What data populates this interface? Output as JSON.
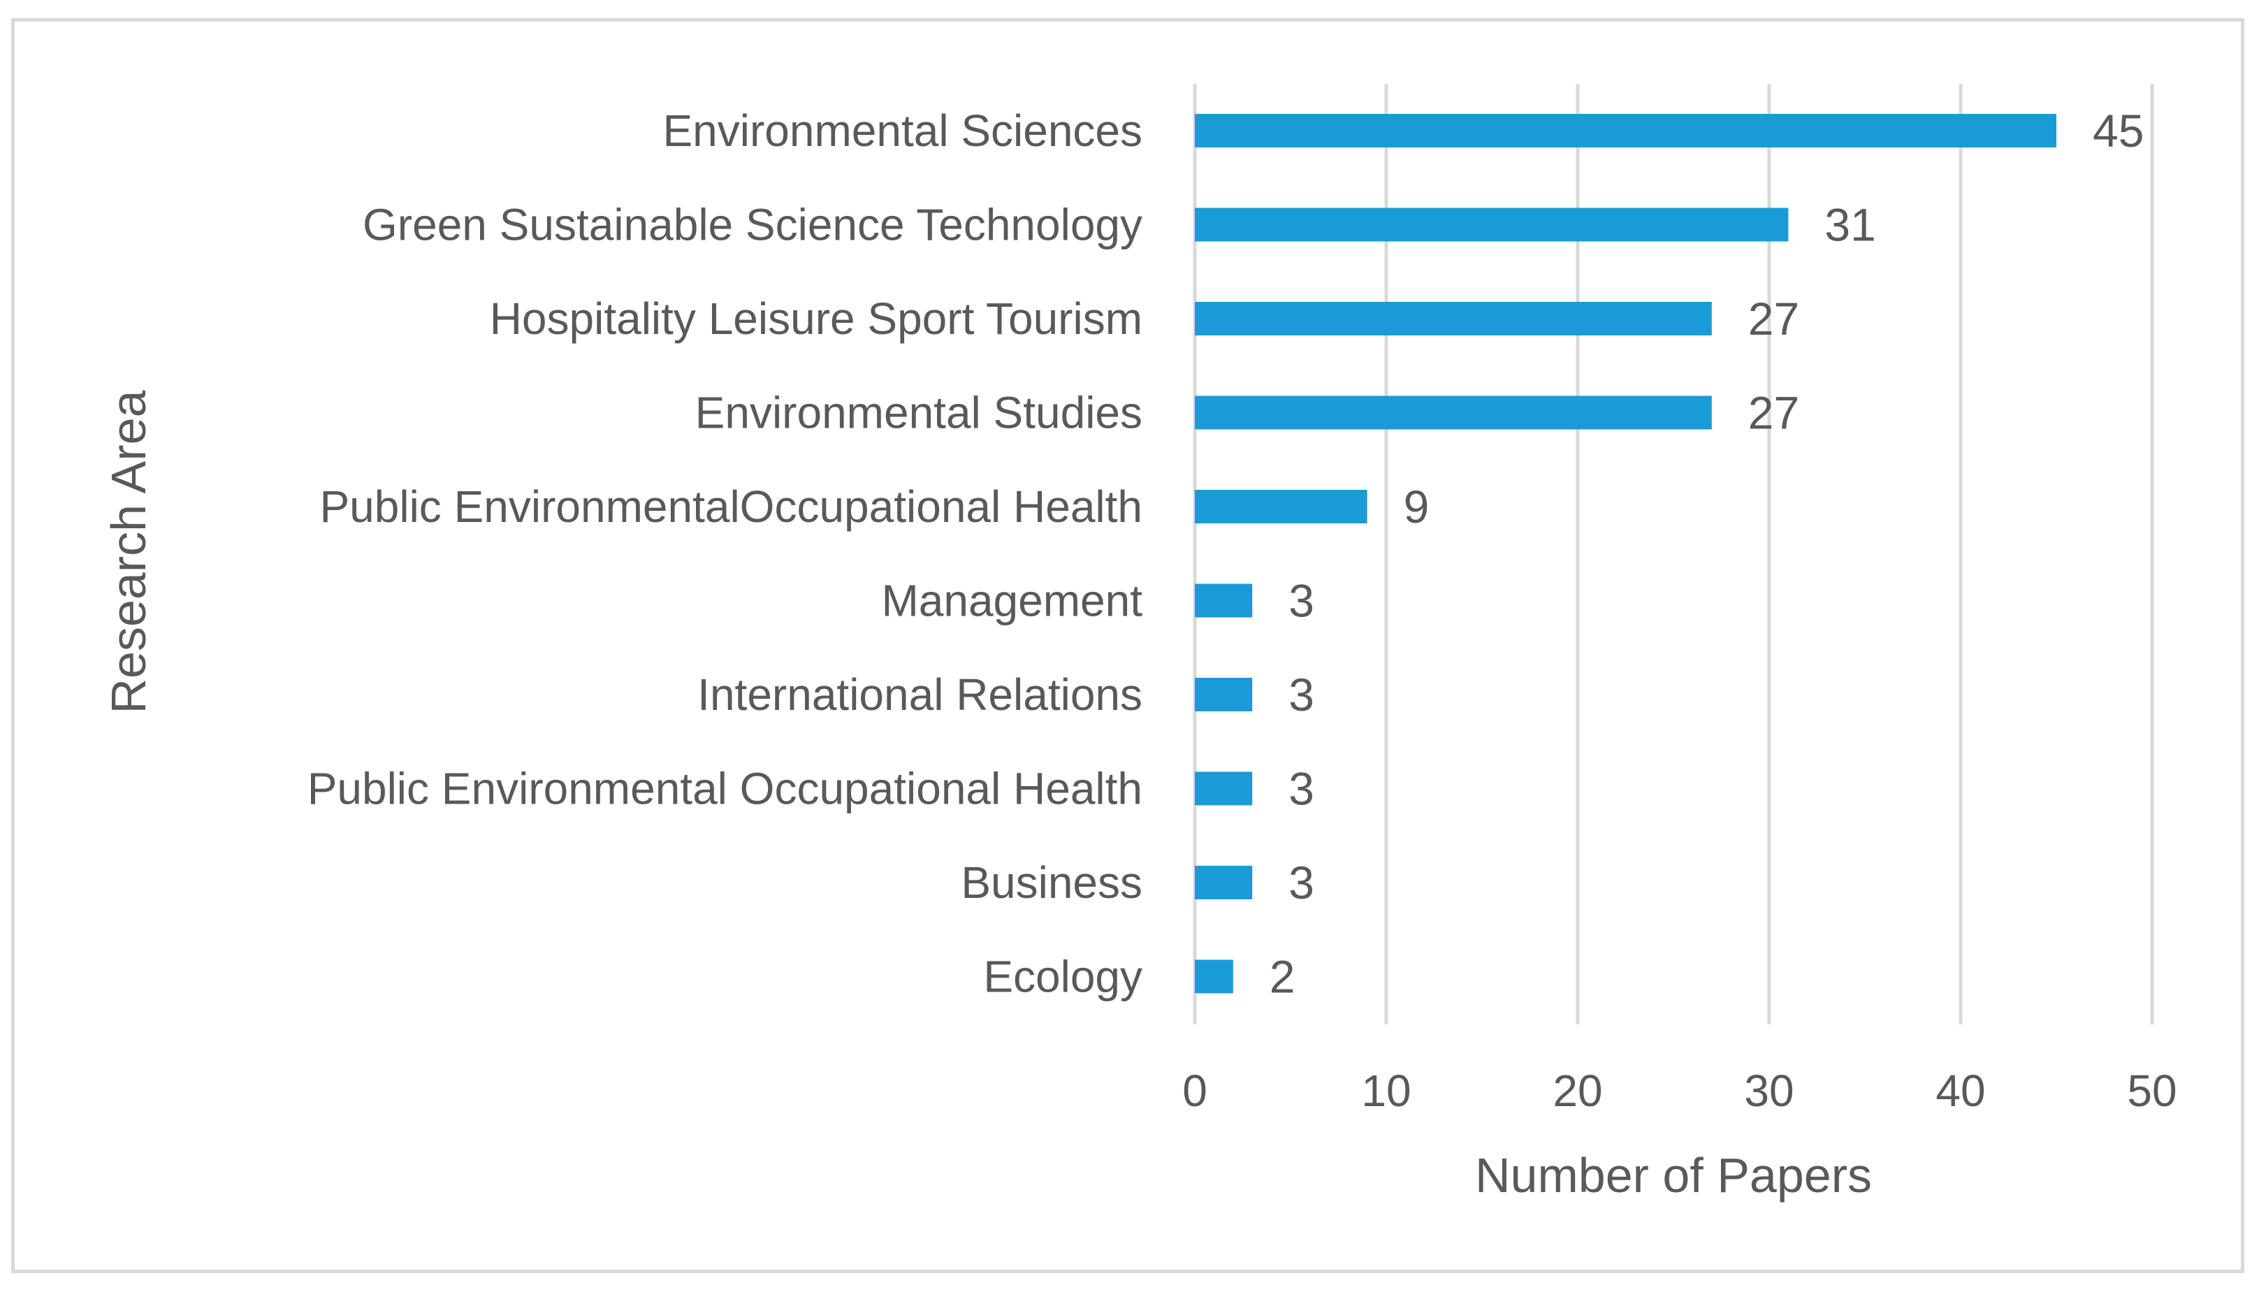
{
  "chart_data": {
    "type": "bar",
    "orientation": "horizontal",
    "title": "",
    "xlabel": "Number of Papers",
    "ylabel": "Research Area",
    "xlim": [
      0,
      50
    ],
    "xticks": [
      0,
      10,
      20,
      30,
      40,
      50
    ],
    "grid": "vertical",
    "legend": "none",
    "bar_color": "#1a9ad6",
    "categories": [
      "Environmental Sciences",
      "Green Sustainable Science Technology",
      "Hospitality Leisure Sport Tourism",
      "Environmental Studies",
      "Public EnvironmentalOccupational Health",
      "Management",
      "International Relations",
      "Public Environmental Occupational Health",
      "Business",
      "Ecology"
    ],
    "values": [
      45,
      31,
      27,
      27,
      9,
      3,
      3,
      3,
      3,
      2
    ]
  }
}
